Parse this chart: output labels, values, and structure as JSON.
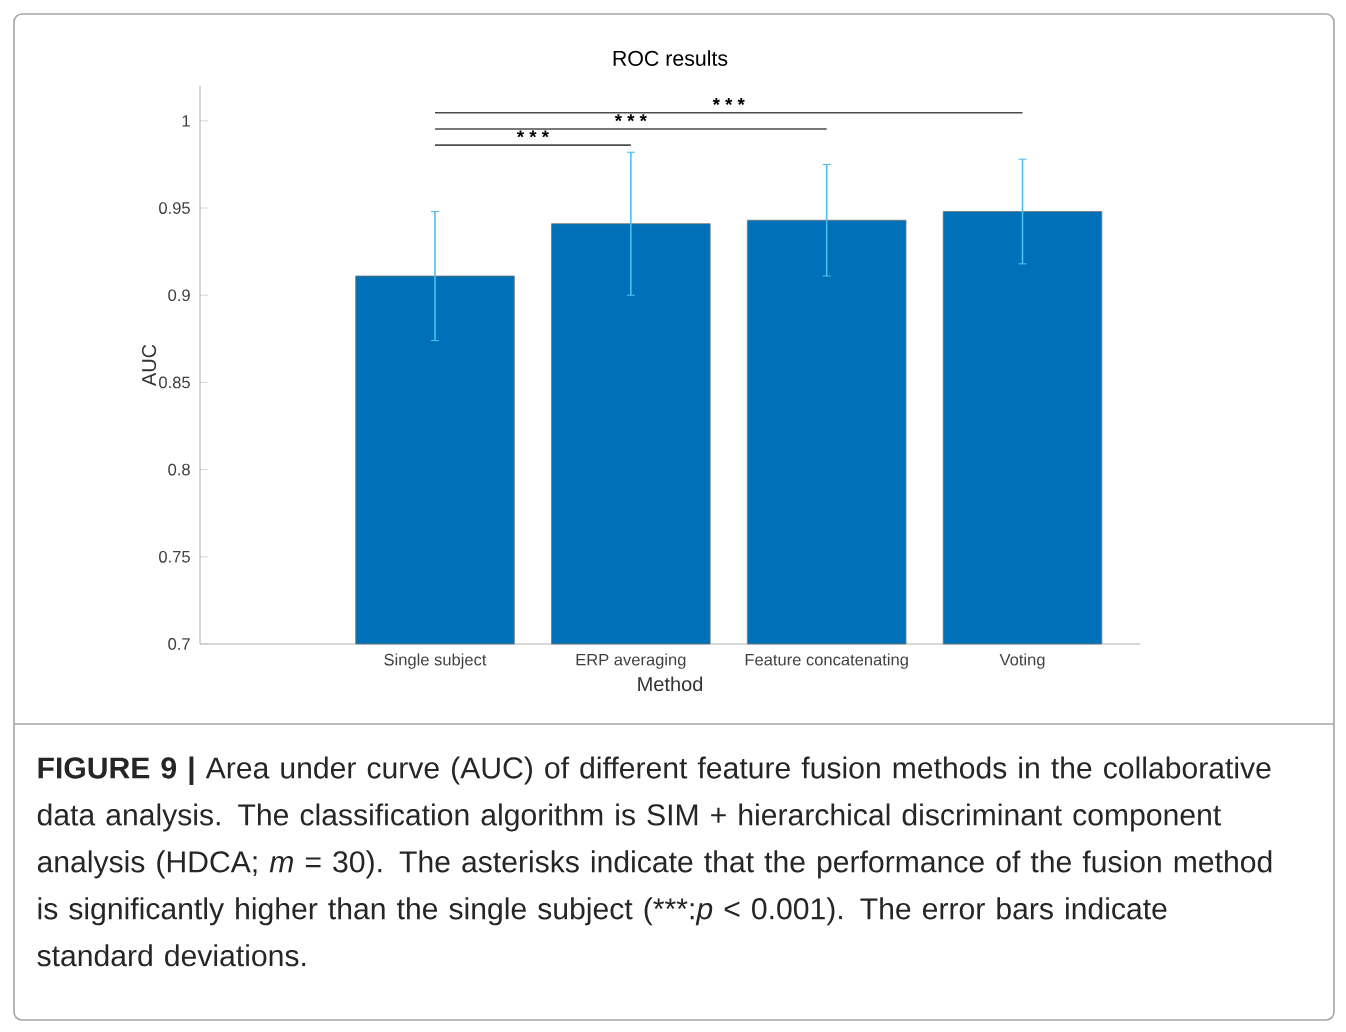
{
  "chart_data": {
    "type": "bar",
    "title": "ROC results",
    "xlabel": "Method",
    "ylabel": "AUC",
    "categories": [
      "Single subject",
      "ERP averaging",
      "Feature concatenating",
      "Voting"
    ],
    "values": [
      0.911,
      0.941,
      0.943,
      0.948
    ],
    "errors": [
      0.037,
      0.041,
      0.032,
      0.03
    ],
    "color": "#0070b8",
    "ylim": [
      0.7,
      1.02
    ],
    "yticks": [
      0.7,
      0.75,
      0.8,
      0.85,
      0.9,
      0.95,
      1
    ],
    "annotations": [
      "* * *",
      "* * *",
      "* * *",
      "**FIGURE 9 |** Area under curve (AUC) of different feature fusion methods in the collaborative data analysis. The classification algorithm is SIM + hierarchical discriminant component analysis (HDCA; *m* = 30). The asterisks indicate that the performance of the fusion method is significantly higher than the single subject (***:*p* < 0.001). The error bars indicate standard deviations."
    ]
  }
}
